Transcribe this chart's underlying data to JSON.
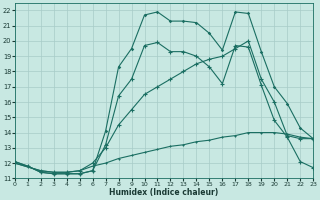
{
  "xlabel": "Humidex (Indice chaleur)",
  "bg_color": "#c8e8e2",
  "grid_color": "#a8ccc8",
  "line_color": "#1a6e62",
  "xlim": [
    0,
    23
  ],
  "ylim": [
    11,
    22.5
  ],
  "yticks": [
    11,
    12,
    13,
    14,
    15,
    16,
    17,
    18,
    19,
    20,
    21,
    22
  ],
  "xticks": [
    0,
    1,
    2,
    3,
    4,
    5,
    6,
    7,
    8,
    9,
    10,
    11,
    12,
    13,
    14,
    15,
    16,
    17,
    18,
    19,
    20,
    21,
    22,
    23
  ],
  "curve1_x": [
    0,
    1,
    2,
    3,
    4,
    5,
    6,
    7,
    8,
    9,
    10,
    11,
    12,
    13,
    14,
    15,
    16,
    17,
    18,
    19,
    20,
    21,
    22,
    23
  ],
  "curve1_y": [
    12.1,
    11.8,
    11.4,
    11.3,
    11.3,
    11.3,
    11.5,
    14.1,
    18.3,
    19.5,
    21.7,
    21.9,
    21.3,
    21.3,
    21.2,
    20.5,
    19.4,
    21.9,
    21.8,
    19.3,
    17.0,
    15.9,
    14.3,
    13.6
  ],
  "curve2_x": [
    0,
    1,
    2,
    3,
    4,
    5,
    6,
    7,
    8,
    9,
    10,
    11,
    12,
    13,
    14,
    15,
    16,
    17,
    18,
    19,
    20,
    21,
    22,
    23
  ],
  "curve2_y": [
    12.1,
    11.8,
    11.4,
    11.3,
    11.3,
    11.3,
    11.5,
    13.2,
    16.4,
    17.5,
    19.7,
    19.9,
    19.3,
    19.3,
    19.0,
    18.3,
    17.2,
    19.7,
    19.6,
    17.1,
    14.8,
    13.7,
    12.1,
    11.7
  ],
  "curve3_x": [
    0,
    2,
    3,
    4,
    5,
    6,
    7,
    8,
    9,
    10,
    11,
    12,
    13,
    14,
    15,
    16,
    17,
    18,
    19,
    20,
    21,
    22,
    23
  ],
  "curve3_y": [
    12.0,
    11.5,
    11.4,
    11.4,
    11.5,
    12.0,
    13.0,
    14.5,
    15.5,
    16.5,
    17.0,
    17.5,
    18.0,
    18.5,
    18.8,
    19.0,
    19.5,
    20.0,
    17.5,
    16.0,
    13.8,
    13.6,
    13.6
  ],
  "curve4_x": [
    0,
    2,
    3,
    4,
    5,
    6,
    7,
    8,
    9,
    10,
    11,
    12,
    13,
    14,
    15,
    16,
    17,
    18,
    19,
    20,
    21,
    22,
    23
  ],
  "curve4_y": [
    12.0,
    11.5,
    11.4,
    11.4,
    11.5,
    11.8,
    12.0,
    12.3,
    12.5,
    12.7,
    12.9,
    13.1,
    13.2,
    13.4,
    13.5,
    13.7,
    13.8,
    14.0,
    14.0,
    14.0,
    13.9,
    13.7,
    13.6
  ]
}
